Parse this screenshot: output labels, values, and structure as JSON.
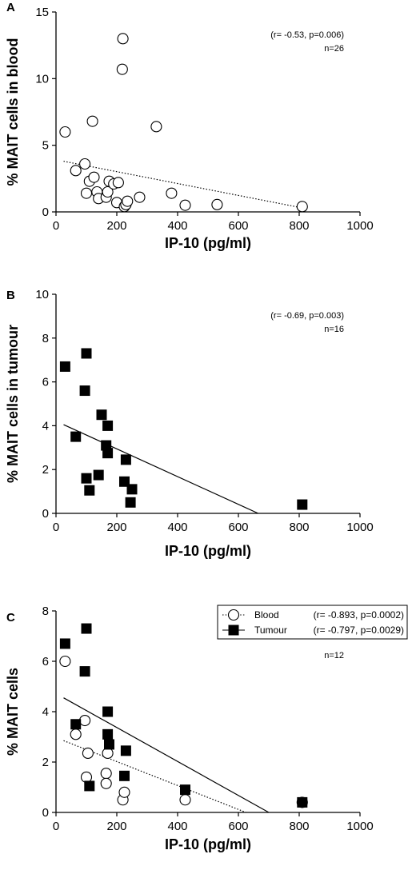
{
  "chart_data": [
    {
      "panel": "A",
      "type": "scatter",
      "xlabel": "IP-10 (pg/ml)",
      "ylabel": "% MAIT cells in blood",
      "xlim": [
        0,
        1000
      ],
      "ylim": [
        0,
        15
      ],
      "x_ticks": [
        0,
        200,
        400,
        600,
        800,
        1000
      ],
      "y_ticks": [
        0,
        5,
        10,
        15
      ],
      "annotations": [
        "(r= -0.53, p=0.006)",
        "n=26"
      ],
      "series": [
        {
          "marker": "open-circle",
          "fit_line": "dotted",
          "fit": {
            "x": [
              25,
              810
            ],
            "y": [
              3.8,
              0.3
            ]
          },
          "points": [
            {
              "x": 30,
              "y": 6.0
            },
            {
              "x": 65,
              "y": 3.1
            },
            {
              "x": 95,
              "y": 3.6
            },
            {
              "x": 100,
              "y": 1.4
            },
            {
              "x": 110,
              "y": 2.3
            },
            {
              "x": 120,
              "y": 6.8
            },
            {
              "x": 125,
              "y": 2.6
            },
            {
              "x": 135,
              "y": 1.5
            },
            {
              "x": 140,
              "y": 1.0
            },
            {
              "x": 165,
              "y": 1.1
            },
            {
              "x": 170,
              "y": 1.5
            },
            {
              "x": 175,
              "y": 2.3
            },
            {
              "x": 190,
              "y": 2.1
            },
            {
              "x": 200,
              "y": 0.7
            },
            {
              "x": 205,
              "y": 2.2
            },
            {
              "x": 218,
              "y": 10.7
            },
            {
              "x": 220,
              "y": 13.0
            },
            {
              "x": 225,
              "y": 0.4
            },
            {
              "x": 230,
              "y": 0.55
            },
            {
              "x": 235,
              "y": 0.8
            },
            {
              "x": 275,
              "y": 1.1
            },
            {
              "x": 330,
              "y": 6.4
            },
            {
              "x": 380,
              "y": 1.4
            },
            {
              "x": 425,
              "y": 0.5
            },
            {
              "x": 530,
              "y": 0.55
            },
            {
              "x": 810,
              "y": 0.4
            }
          ]
        }
      ]
    },
    {
      "panel": "B",
      "type": "scatter",
      "xlabel": "IP-10 (pg/ml)",
      "ylabel": "% MAIT cells in tumour",
      "xlim": [
        0,
        1000
      ],
      "ylim": [
        0,
        10
      ],
      "x_ticks": [
        0,
        200,
        400,
        600,
        800,
        1000
      ],
      "y_ticks": [
        0,
        2,
        4,
        6,
        8,
        10
      ],
      "annotations": [
        "(r= -0.69, p=0.003)",
        "n=16"
      ],
      "series": [
        {
          "marker": "filled-square",
          "fit_line": "solid",
          "fit": {
            "x": [
              25,
              665
            ],
            "y": [
              4.05,
              0.0
            ]
          },
          "points": [
            {
              "x": 30,
              "y": 6.7
            },
            {
              "x": 65,
              "y": 3.5
            },
            {
              "x": 95,
              "y": 5.6
            },
            {
              "x": 100,
              "y": 7.3
            },
            {
              "x": 100,
              "y": 1.6
            },
            {
              "x": 110,
              "y": 1.05
            },
            {
              "x": 140,
              "y": 1.75
            },
            {
              "x": 150,
              "y": 4.5
            },
            {
              "x": 165,
              "y": 3.1
            },
            {
              "x": 170,
              "y": 4.0
            },
            {
              "x": 170,
              "y": 2.75
            },
            {
              "x": 225,
              "y": 1.45
            },
            {
              "x": 230,
              "y": 2.45
            },
            {
              "x": 245,
              "y": 0.5
            },
            {
              "x": 250,
              "y": 1.1
            },
            {
              "x": 810,
              "y": 0.4
            }
          ]
        }
      ]
    },
    {
      "panel": "C",
      "type": "scatter",
      "xlabel": "IP-10 (pg/ml)",
      "ylabel": "% MAIT cells",
      "xlim": [
        0,
        1000
      ],
      "ylim": [
        0,
        8
      ],
      "x_ticks": [
        0,
        200,
        400,
        600,
        800,
        1000
      ],
      "y_ticks": [
        0,
        2,
        4,
        6,
        8
      ],
      "annotations": [
        "n=12"
      ],
      "legend_position": "top-right",
      "series": [
        {
          "name": "Blood",
          "stats": "(r= -0.893, p=0.0002)",
          "marker": "open-circle",
          "fit_line": "dotted",
          "fit": {
            "x": [
              25,
              625
            ],
            "y": [
              2.85,
              0.0
            ]
          },
          "points": [
            {
              "x": 30,
              "y": 6.0
            },
            {
              "x": 65,
              "y": 3.1
            },
            {
              "x": 95,
              "y": 3.65
            },
            {
              "x": 100,
              "y": 1.4
            },
            {
              "x": 105,
              "y": 2.35
            },
            {
              "x": 165,
              "y": 1.55
            },
            {
              "x": 165,
              "y": 1.15
            },
            {
              "x": 170,
              "y": 2.35
            },
            {
              "x": 220,
              "y": 0.5
            },
            {
              "x": 225,
              "y": 0.8
            },
            {
              "x": 425,
              "y": 0.5
            },
            {
              "x": 810,
              "y": 0.4
            }
          ]
        },
        {
          "name": "Tumour",
          "stats": "(r= -0.797, p=0.0029)",
          "marker": "filled-square",
          "fit_line": "solid",
          "fit": {
            "x": [
              25,
              700
            ],
            "y": [
              4.55,
              0.0
            ]
          },
          "points": [
            {
              "x": 30,
              "y": 6.7
            },
            {
              "x": 65,
              "y": 3.5
            },
            {
              "x": 95,
              "y": 5.6
            },
            {
              "x": 100,
              "y": 7.3
            },
            {
              "x": 110,
              "y": 1.05
            },
            {
              "x": 170,
              "y": 4.0
            },
            {
              "x": 170,
              "y": 3.1
            },
            {
              "x": 175,
              "y": 2.7
            },
            {
              "x": 225,
              "y": 1.45
            },
            {
              "x": 230,
              "y": 2.45
            },
            {
              "x": 425,
              "y": 0.9
            },
            {
              "x": 810,
              "y": 0.4
            }
          ]
        }
      ]
    }
  ]
}
